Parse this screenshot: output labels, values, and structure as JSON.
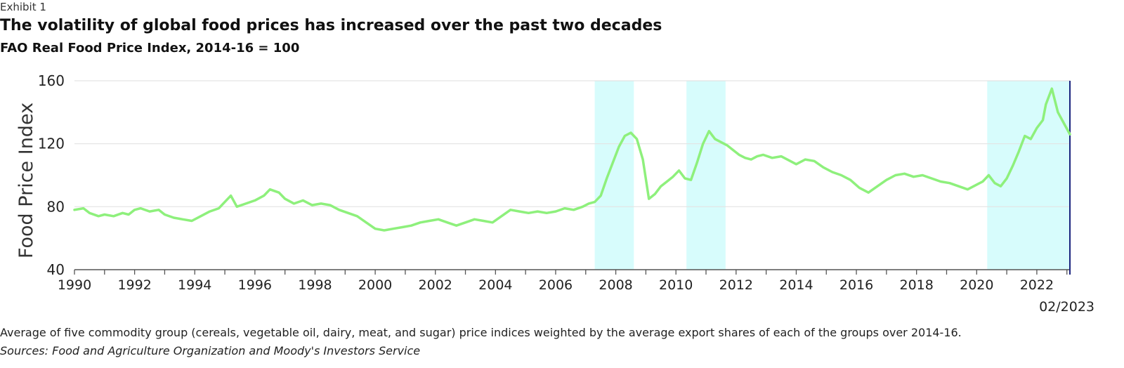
{
  "header": {
    "exhibit": "Exhibit 1",
    "title": "The volatility of global food prices has increased over the past two decades",
    "subtitle": "FAO Real Food Price Index, 2014-16 = 100"
  },
  "footer": {
    "note": "Average of five commodity group (cereals, vegetable oil, dairy, meat, and sugar) price indices weighted by the average export shares of each of the groups over 2014-16.",
    "source": "Sources: Food and Agriculture Organization and Moody's Investors Service"
  },
  "chart_data": {
    "type": "line",
    "title": "",
    "xlabel": "",
    "ylabel": "Food Price Index",
    "xlim": [
      1990,
      2023.1
    ],
    "ylim": [
      40,
      160
    ],
    "yticks": [
      40,
      80,
      120,
      160
    ],
    "xticks": [
      1990,
      1992,
      1994,
      1996,
      1998,
      2000,
      2002,
      2004,
      2006,
      2008,
      2010,
      2012,
      2014,
      2016,
      2018,
      2020,
      2022
    ],
    "end_marker": {
      "x": 2023.1,
      "label": "02/2023"
    },
    "grid": true,
    "legend": "none",
    "colors": {
      "line": "#8ef07c",
      "shade": "#d7fcfc",
      "end_marker": "#1a237e",
      "grid": "#e3e3e3",
      "axis": "#555555"
    },
    "shaded_periods": [
      [
        2007.3,
        2008.6
      ],
      [
        2010.35,
        2011.65
      ],
      [
        2020.35,
        2023.1
      ]
    ],
    "series": [
      {
        "x": [
          1990.0,
          1990.3,
          1990.5,
          1990.8,
          1991.0,
          1991.3,
          1991.6,
          1991.8,
          1992.0,
          1992.2,
          1992.5,
          1992.8,
          1993.0,
          1993.3,
          1993.6,
          1993.9,
          1994.2,
          1994.5,
          1994.8,
          1995.0,
          1995.2,
          1995.4,
          1995.7,
          1996.0,
          1996.3,
          1996.5,
          1996.8,
          1997.0,
          1997.3,
          1997.6,
          1997.9,
          1998.2,
          1998.5,
          1998.8,
          1999.1,
          1999.4,
          1999.7,
          2000.0,
          2000.3,
          2000.6,
          2000.9,
          2001.2,
          2001.5,
          2001.8,
          2002.1,
          2002.4,
          2002.7,
          2003.0,
          2003.3,
          2003.6,
          2003.9,
          2004.2,
          2004.5,
          2004.8,
          2005.1,
          2005.4,
          2005.7,
          2006.0,
          2006.3,
          2006.6,
          2006.9,
          2007.1,
          2007.3,
          2007.5,
          2007.7,
          2007.9,
          2008.1,
          2008.3,
          2008.5,
          2008.7,
          2008.9,
          2009.1,
          2009.3,
          2009.5,
          2009.7,
          2009.9,
          2010.1,
          2010.3,
          2010.5,
          2010.7,
          2010.9,
          2011.1,
          2011.3,
          2011.5,
          2011.7,
          2011.9,
          2012.1,
          2012.3,
          2012.5,
          2012.7,
          2012.9,
          2013.2,
          2013.5,
          2013.8,
          2014.0,
          2014.3,
          2014.6,
          2014.9,
          2015.2,
          2015.5,
          2015.8,
          2016.1,
          2016.4,
          2016.7,
          2017.0,
          2017.3,
          2017.6,
          2017.9,
          2018.2,
          2018.5,
          2018.8,
          2019.1,
          2019.4,
          2019.7,
          2020.0,
          2020.2,
          2020.4,
          2020.6,
          2020.8,
          2021.0,
          2021.2,
          2021.4,
          2021.6,
          2021.8,
          2022.0,
          2022.2,
          2022.3,
          2022.5,
          2022.7,
          2022.9,
          2023.1
        ],
        "values": [
          78,
          79,
          76,
          74,
          75,
          74,
          76,
          75,
          78,
          79,
          77,
          78,
          75,
          73,
          72,
          71,
          74,
          77,
          79,
          83,
          87,
          80,
          82,
          84,
          87,
          91,
          89,
          85,
          82,
          84,
          81,
          82,
          81,
          78,
          76,
          74,
          70,
          66,
          65,
          66,
          67,
          68,
          70,
          71,
          72,
          70,
          68,
          70,
          72,
          71,
          70,
          74,
          78,
          77,
          76,
          77,
          76,
          77,
          79,
          78,
          80,
          82,
          83,
          87,
          98,
          108,
          118,
          125,
          127,
          123,
          110,
          85,
          88,
          93,
          96,
          99,
          103,
          98,
          97,
          108,
          120,
          128,
          123,
          121,
          119,
          116,
          113,
          111,
          110,
          112,
          113,
          111,
          112,
          109,
          107,
          110,
          109,
          105,
          102,
          100,
          97,
          92,
          89,
          93,
          97,
          100,
          101,
          99,
          100,
          98,
          96,
          95,
          93,
          91,
          94,
          96,
          100,
          95,
          93,
          98,
          106,
          115,
          125,
          123,
          130,
          135,
          145,
          155,
          140,
          133,
          126
        ]
      }
    ]
  }
}
